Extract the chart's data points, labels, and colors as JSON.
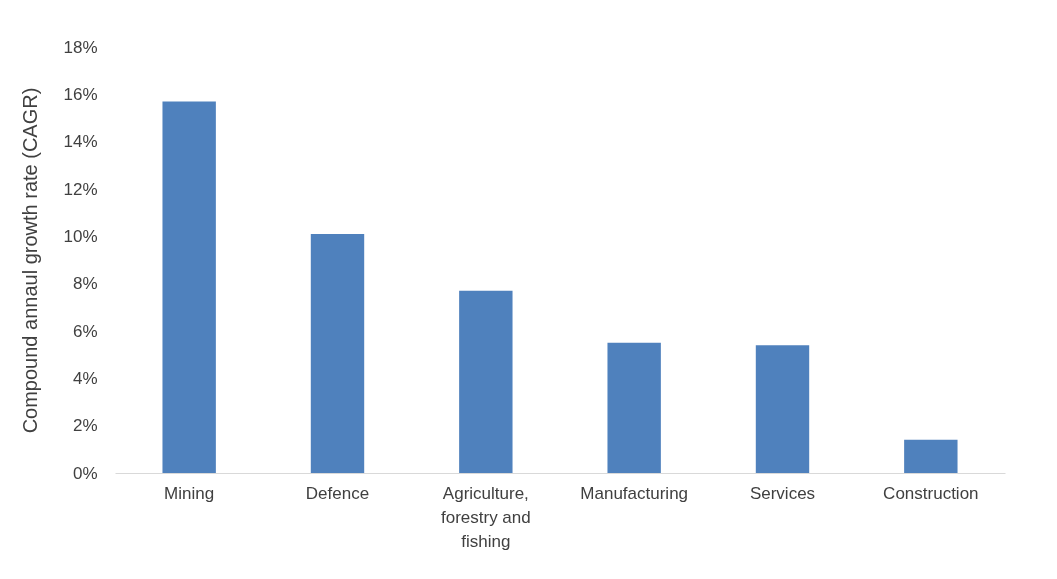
{
  "chart_data": {
    "type": "bar",
    "ylabel": "Compound annaul  growth rate (CAGR)",
    "categories": [
      "Mining",
      "Defence",
      "Agriculture, forestry and fishing",
      "Manufacturing",
      "Services",
      "Construction"
    ],
    "values": [
      15.7,
      10.1,
      7.7,
      5.5,
      5.4,
      1.4
    ],
    "color": "#4f81bd",
    "ylim": [
      0,
      18
    ],
    "yticks": [
      {
        "value": 0,
        "label": "0%"
      },
      {
        "value": 2,
        "label": "2%"
      },
      {
        "value": 4,
        "label": "4%"
      },
      {
        "value": 6,
        "label": "6%"
      },
      {
        "value": 8,
        "label": "8%"
      },
      {
        "value": 10,
        "label": "10%"
      },
      {
        "value": 12,
        "label": "12%"
      },
      {
        "value": 14,
        "label": "14%"
      },
      {
        "value": 16,
        "label": "16%"
      },
      {
        "value": 18,
        "label": "18%"
      }
    ],
    "grid": false
  }
}
